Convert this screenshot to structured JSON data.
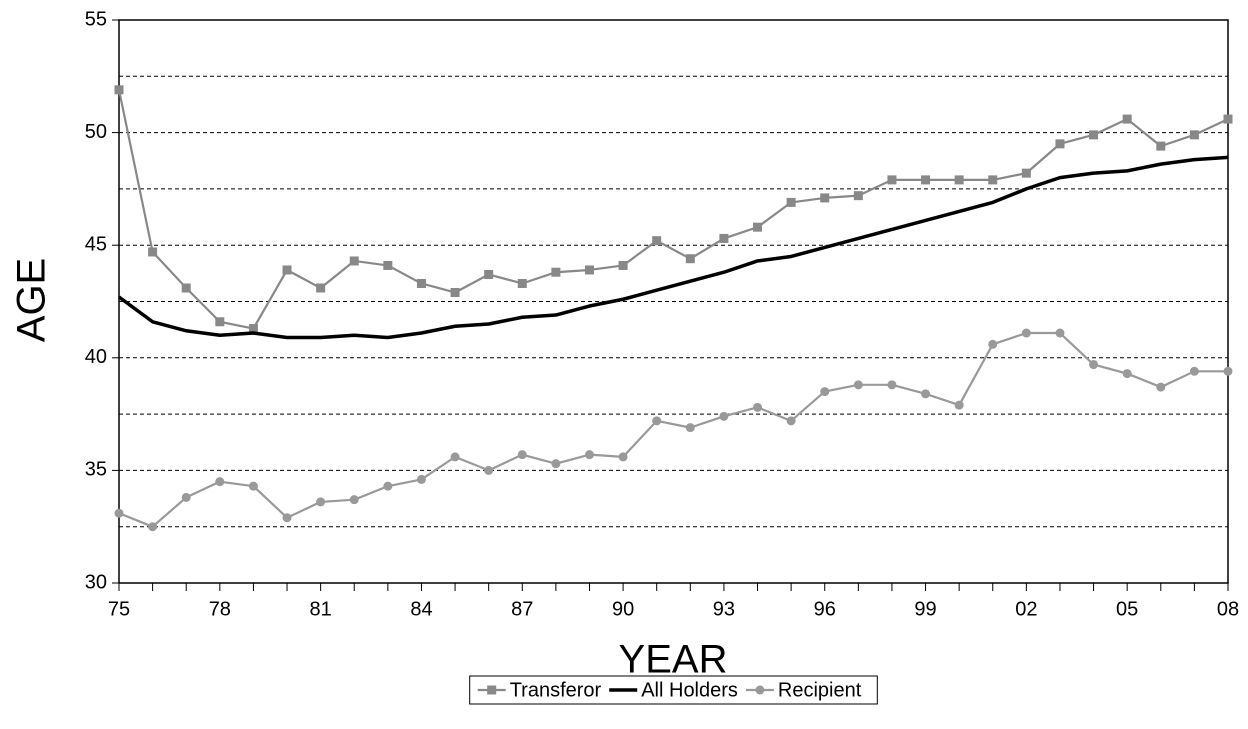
{
  "chart_data": {
    "type": "line",
    "x_label": "YEAR",
    "y_label": "AGE",
    "categories": [
      "75",
      null,
      null,
      "78",
      null,
      null,
      "81",
      null,
      null,
      "84",
      null,
      null,
      "87",
      null,
      null,
      "90",
      null,
      null,
      "93",
      null,
      null,
      "96",
      null,
      null,
      "99",
      null,
      null,
      "02",
      null,
      null,
      "05",
      null,
      null,
      "08"
    ],
    "series": [
      {
        "name": "Transferor",
        "color": "#888888",
        "marker": "square",
        "values": [
          51.9,
          44.7,
          43.1,
          41.6,
          41.3,
          43.9,
          43.1,
          44.3,
          44.1,
          43.3,
          42.9,
          43.7,
          43.3,
          43.8,
          43.9,
          44.1,
          45.2,
          44.4,
          45.3,
          45.8,
          46.9,
          47.1,
          47.2,
          47.9,
          47.9,
          47.9,
          47.9,
          48.2,
          49.5,
          49.9,
          50.6,
          49.4,
          49.9,
          50.6
        ]
      },
      {
        "name": "All Holders",
        "color": "#000000",
        "marker": "none",
        "values": [
          42.7,
          41.6,
          41.2,
          41.0,
          41.1,
          40.9,
          40.9,
          41.0,
          40.9,
          41.1,
          41.4,
          41.5,
          41.8,
          41.9,
          42.3,
          42.6,
          43.0,
          43.4,
          43.8,
          44.3,
          44.5,
          44.9,
          45.3,
          45.7,
          46.1,
          46.5,
          46.9,
          47.5,
          48.0,
          48.2,
          48.3,
          48.6,
          48.8,
          48.9
        ]
      },
      {
        "name": "Recipient",
        "color": "#999999",
        "marker": "circle",
        "values": [
          33.1,
          32.5,
          33.8,
          34.5,
          34.3,
          32.9,
          33.6,
          33.7,
          34.3,
          34.6,
          35.6,
          35.0,
          35.7,
          35.3,
          35.7,
          35.6,
          37.2,
          36.9,
          37.4,
          37.8,
          37.2,
          38.5,
          38.8,
          38.8,
          38.4,
          37.9,
          40.6,
          41.1,
          41.1,
          39.7,
          39.3,
          38.7,
          39.4,
          39.4
        ]
      }
    ],
    "ylim": [
      30,
      55
    ],
    "yticks": [
      30,
      35,
      40,
      45,
      50,
      55
    ],
    "grid_lines": [
      32.5,
      35,
      37.5,
      40,
      42.5,
      45,
      47.5,
      50,
      52.5
    ],
    "legend": "bottom"
  }
}
